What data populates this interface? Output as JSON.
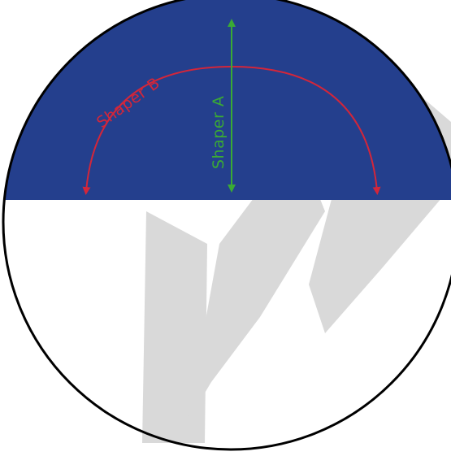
{
  "diagram": {
    "labels": {
      "shaper_a": "Shaper A",
      "shaper_b": "Shaper B"
    },
    "colors": {
      "background": "#ffffff",
      "watermark": "#d9d9d9",
      "upper_fill": "#243f8d",
      "lower_fill": "#ffffff",
      "outline": "#000000",
      "shaper_a": "#3aaa35",
      "shaper_b": "#d3263a"
    }
  }
}
